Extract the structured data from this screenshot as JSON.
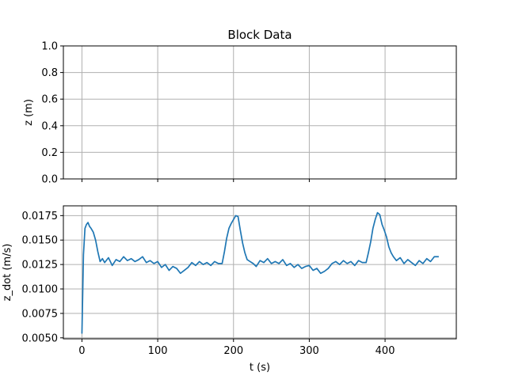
{
  "chart_data": [
    {
      "type": "line",
      "title": "Block Data",
      "xlabel": "",
      "ylabel": "z (m)",
      "xlim": [
        -24.5,
        494
      ],
      "ylim": [
        0,
        1
      ],
      "grid": true,
      "xticks": [
        0,
        100,
        200,
        300,
        400
      ],
      "xtick_labels_visible": false,
      "yticks": [
        0.0,
        0.2,
        0.4,
        0.6,
        0.8,
        1.0
      ],
      "ytick_labels": [
        "0.0",
        "0.2",
        "0.4",
        "0.6",
        "0.8",
        "1.0"
      ],
      "series": []
    },
    {
      "type": "line",
      "title": "",
      "xlabel": "t (s)",
      "ylabel": "z_dot (m/s)",
      "xlim": [
        -24.5,
        494
      ],
      "ylim": [
        0.0049,
        0.0185
      ],
      "grid": true,
      "color": "#1f77b4",
      "xticks": [
        0,
        100,
        200,
        300,
        400
      ],
      "xtick_labels": [
        "0",
        "100",
        "200",
        "300",
        "400"
      ],
      "yticks": [
        0.005,
        0.0075,
        0.01,
        0.0125,
        0.015,
        0.0175
      ],
      "ytick_labels": [
        "0.0050",
        "0.0075",
        "0.0100",
        "0.0125",
        "0.0150",
        "0.0175"
      ],
      "series": [
        {
          "x": [
            0,
            2,
            4,
            6,
            8,
            10,
            12,
            15,
            18,
            21,
            24,
            27,
            30,
            35,
            40,
            45,
            50,
            55,
            60,
            65,
            70,
            75,
            80,
            85,
            90,
            95,
            100,
            105,
            110,
            115,
            120,
            125,
            130,
            135,
            140,
            145,
            150,
            155,
            160,
            165,
            170,
            175,
            180,
            185,
            188,
            191,
            194,
            197,
            200,
            203,
            206,
            209,
            212,
            215,
            218,
            222,
            226,
            230,
            235,
            240,
            245,
            250,
            255,
            260,
            265,
            270,
            275,
            280,
            285,
            290,
            295,
            300,
            305,
            310,
            315,
            320,
            325,
            330,
            335,
            340,
            345,
            350,
            355,
            360,
            365,
            370,
            375,
            378,
            381,
            384,
            387,
            390,
            393,
            396,
            399,
            402,
            405,
            408,
            411,
            415,
            420,
            425,
            430,
            435,
            440,
            445,
            450,
            455,
            460,
            465,
            470
          ],
          "y": [
            0.0055,
            0.0135,
            0.0162,
            0.0166,
            0.0168,
            0.0164,
            0.0162,
            0.0158,
            0.015,
            0.0138,
            0.0128,
            0.0131,
            0.0127,
            0.0132,
            0.0124,
            0.013,
            0.0128,
            0.0133,
            0.0129,
            0.0131,
            0.0128,
            0.013,
            0.0133,
            0.0127,
            0.0129,
            0.0126,
            0.0128,
            0.0122,
            0.0125,
            0.0119,
            0.0123,
            0.0121,
            0.0116,
            0.0119,
            0.0122,
            0.0127,
            0.0124,
            0.0128,
            0.0125,
            0.0127,
            0.0124,
            0.0128,
            0.0126,
            0.0126,
            0.0138,
            0.0152,
            0.0162,
            0.0167,
            0.0171,
            0.0175,
            0.0174,
            0.016,
            0.0147,
            0.0137,
            0.013,
            0.0128,
            0.0126,
            0.0123,
            0.0129,
            0.0127,
            0.0131,
            0.0126,
            0.0128,
            0.0126,
            0.013,
            0.0124,
            0.0126,
            0.0122,
            0.0125,
            0.0121,
            0.0123,
            0.0124,
            0.0119,
            0.0121,
            0.0116,
            0.0118,
            0.0121,
            0.0126,
            0.0128,
            0.0125,
            0.0129,
            0.0126,
            0.0128,
            0.0124,
            0.0129,
            0.0127,
            0.0127,
            0.0137,
            0.0148,
            0.0162,
            0.0171,
            0.0178,
            0.0176,
            0.0166,
            0.016,
            0.0153,
            0.0143,
            0.0137,
            0.0133,
            0.0129,
            0.0132,
            0.0126,
            0.013,
            0.0127,
            0.0124,
            0.0129,
            0.0126,
            0.0131,
            0.0128,
            0.0133,
            0.0133
          ]
        }
      ]
    }
  ]
}
